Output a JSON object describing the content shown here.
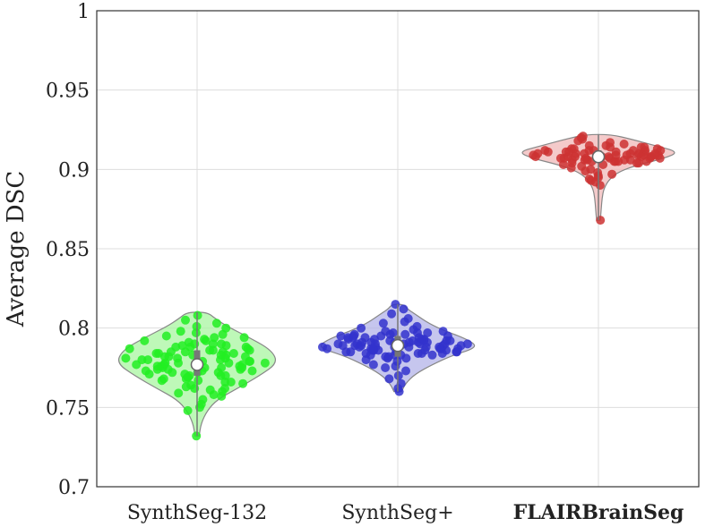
{
  "chart_data": {
    "type": "violin",
    "title": "",
    "xlabel": "",
    "ylabel": "Average DSC",
    "ylim": [
      0.7,
      1.0
    ],
    "yticks": [
      0.7,
      0.75,
      0.8,
      0.85,
      0.9,
      0.95,
      1
    ],
    "ytick_labels": [
      "0.7",
      "0.75",
      "0.8",
      "0.85",
      "0.9",
      "0.95",
      "1"
    ],
    "grid": true,
    "categories": [
      "SynthSeg-132",
      "SynthSeg+",
      "FLAIRBrainSeg"
    ],
    "category_bold": [
      false,
      false,
      true
    ],
    "series": [
      {
        "category": "SynthSeg-132",
        "color": "#22ee22",
        "fill": "#a8f5a0",
        "median": 0.777,
        "q1": 0.77,
        "q3": 0.786,
        "min": 0.732,
        "max": 0.81,
        "profile": [
          [
            0.732,
            2
          ],
          [
            0.74,
            4
          ],
          [
            0.748,
            10
          ],
          [
            0.755,
            20
          ],
          [
            0.762,
            40
          ],
          [
            0.77,
            62
          ],
          [
            0.778,
            80
          ],
          [
            0.786,
            74
          ],
          [
            0.794,
            52
          ],
          [
            0.801,
            30
          ],
          [
            0.806,
            18
          ],
          [
            0.81,
            10
          ]
        ],
        "points": [
          0.78,
          0.772,
          0.79,
          0.765,
          0.785,
          0.775,
          0.795,
          0.76,
          0.778,
          0.782,
          0.77,
          0.788,
          0.776,
          0.768,
          0.792,
          0.784,
          0.774,
          0.766,
          0.786,
          0.779,
          0.771,
          0.783,
          0.789,
          0.763,
          0.777,
          0.781,
          0.773,
          0.787,
          0.769,
          0.791,
          0.775,
          0.78,
          0.767,
          0.785,
          0.778,
          0.772,
          0.794,
          0.762,
          0.784,
          0.776,
          0.77,
          0.788,
          0.774,
          0.782,
          0.779,
          0.766,
          0.79,
          0.773,
          0.786,
          0.777,
          0.781,
          0.768,
          0.783,
          0.775,
          0.789,
          0.771,
          0.785,
          0.778,
          0.764,
          0.792,
          0.776,
          0.78,
          0.772,
          0.787,
          0.774,
          0.782,
          0.769,
          0.784,
          0.777,
          0.79,
          0.773,
          0.779,
          0.786,
          0.77,
          0.781,
          0.775,
          0.788,
          0.767,
          0.783,
          0.778,
          0.797,
          0.8,
          0.805,
          0.808,
          0.803,
          0.75,
          0.748,
          0.752,
          0.755,
          0.732,
          0.758,
          0.761,
          0.798,
          0.796,
          0.757,
          0.801,
          0.759,
          0.793,
          0.794,
          0.762
        ]
      },
      {
        "category": "SynthSeg+",
        "color": "#3333cc",
        "fill": "#b3b3e8",
        "median": 0.789,
        "q1": 0.782,
        "q3": 0.795,
        "min": 0.76,
        "max": 0.815,
        "profile": [
          [
            0.76,
            4
          ],
          [
            0.765,
            8
          ],
          [
            0.771,
            18
          ],
          [
            0.777,
            36
          ],
          [
            0.783,
            58
          ],
          [
            0.788,
            84
          ],
          [
            0.793,
            72
          ],
          [
            0.798,
            50
          ],
          [
            0.803,
            32
          ],
          [
            0.808,
            20
          ],
          [
            0.812,
            10
          ],
          [
            0.815,
            6
          ]
        ],
        "points": [
          0.788,
          0.792,
          0.785,
          0.795,
          0.79,
          0.783,
          0.797,
          0.787,
          0.791,
          0.786,
          0.794,
          0.789,
          0.782,
          0.796,
          0.788,
          0.793,
          0.784,
          0.79,
          0.787,
          0.798,
          0.781,
          0.792,
          0.786,
          0.795,
          0.789,
          0.783,
          0.791,
          0.788,
          0.794,
          0.785,
          0.79,
          0.787,
          0.793,
          0.78,
          0.796,
          0.789,
          0.784,
          0.792,
          0.786,
          0.799,
          0.788,
          0.782,
          0.791,
          0.787,
          0.795,
          0.79,
          0.785,
          0.793,
          0.789,
          0.783,
          0.797,
          0.786,
          0.791,
          0.788,
          0.794,
          0.784,
          0.79,
          0.787,
          0.792,
          0.781,
          0.796,
          0.789,
          0.785,
          0.793,
          0.788,
          0.791,
          0.786,
          0.795,
          0.79,
          0.783,
          0.789,
          0.787,
          0.794,
          0.792,
          0.786,
          0.79,
          0.784,
          0.788,
          0.791,
          0.785,
          0.803,
          0.806,
          0.809,
          0.812,
          0.815,
          0.77,
          0.765,
          0.762,
          0.76,
          0.773,
          0.775,
          0.768,
          0.801,
          0.8,
          0.777,
          0.779,
          0.776,
          0.798,
          0.797,
          0.804
        ]
      },
      {
        "category": "FLAIRBrainSeg",
        "color": "#cc3333",
        "fill": "#f0b8b8",
        "median": 0.908,
        "q1": 0.904,
        "q3": 0.912,
        "min": 0.868,
        "max": 0.922,
        "profile": [
          [
            0.868,
            2
          ],
          [
            0.875,
            3
          ],
          [
            0.882,
            4
          ],
          [
            0.888,
            6
          ],
          [
            0.894,
            12
          ],
          [
            0.899,
            24
          ],
          [
            0.903,
            44
          ],
          [
            0.907,
            72
          ],
          [
            0.911,
            88
          ],
          [
            0.915,
            62
          ],
          [
            0.919,
            36
          ],
          [
            0.922,
            14
          ]
        ],
        "points": [
          0.908,
          0.91,
          0.905,
          0.912,
          0.907,
          0.913,
          0.904,
          0.909,
          0.911,
          0.906,
          0.914,
          0.908,
          0.903,
          0.91,
          0.907,
          0.912,
          0.905,
          0.909,
          0.915,
          0.906,
          0.911,
          0.908,
          0.913,
          0.904,
          0.91,
          0.907,
          0.909,
          0.912,
          0.905,
          0.908,
          0.911,
          0.906,
          0.914,
          0.909,
          0.903,
          0.91,
          0.907,
          0.912,
          0.908,
          0.905,
          0.911,
          0.909,
          0.906,
          0.913,
          0.908,
          0.91,
          0.904,
          0.912,
          0.907,
          0.909,
          0.911,
          0.906,
          0.908,
          0.914,
          0.91,
          0.905,
          0.909,
          0.907,
          0.912,
          0.908,
          0.916,
          0.918,
          0.92,
          0.921,
          0.919,
          0.9,
          0.898,
          0.896,
          0.894,
          0.892,
          0.89,
          0.897,
          0.899,
          0.901,
          0.902,
          0.868,
          0.895,
          0.917,
          0.915,
          0.893
        ]
      }
    ]
  }
}
